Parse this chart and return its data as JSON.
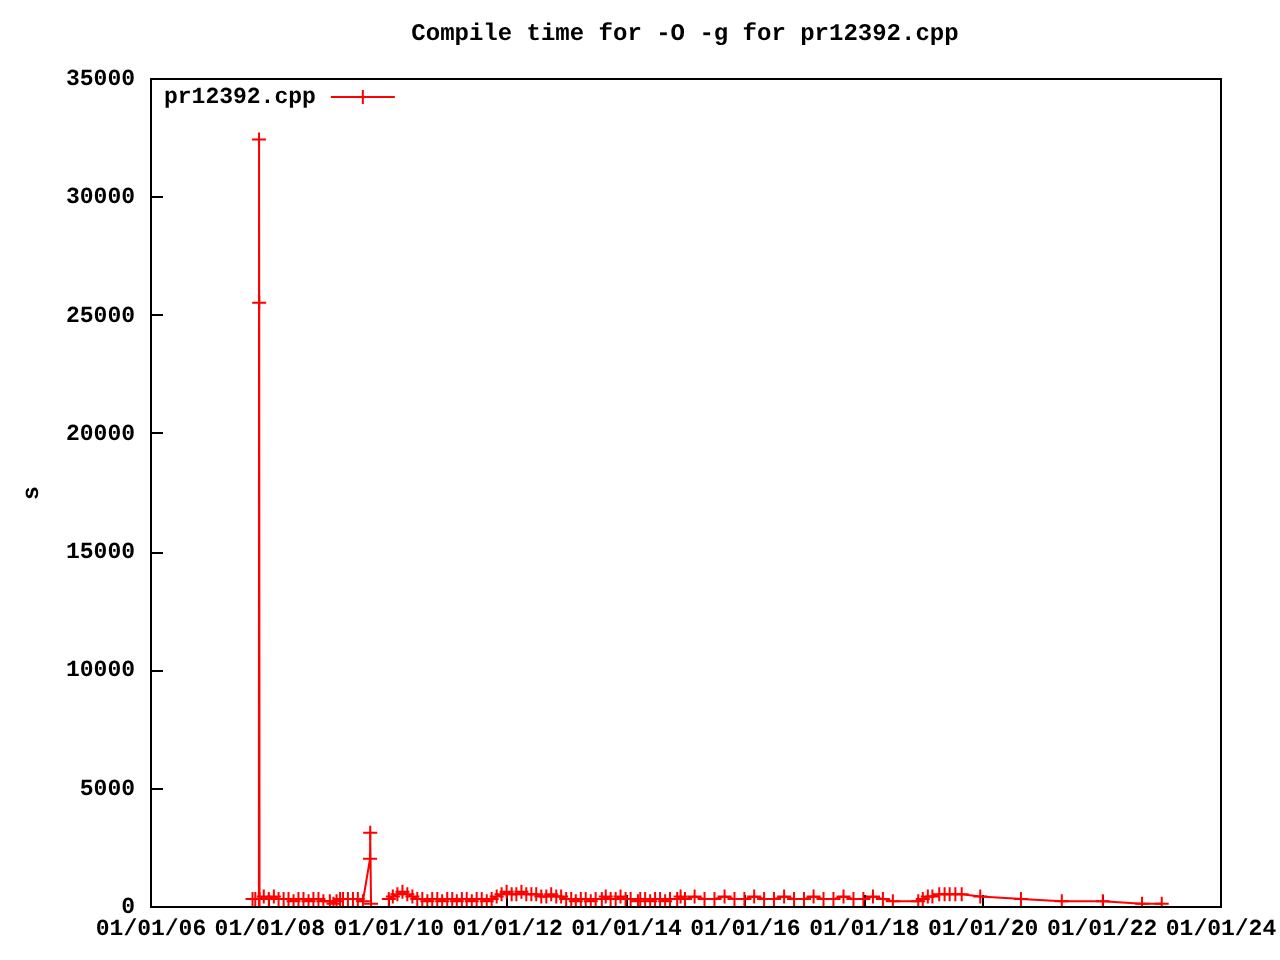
{
  "chart_data": {
    "type": "line",
    "title": "Compile time for -O -g for pr12392.cpp",
    "ylabel": "s",
    "x": [
      "2007-09-23",
      "2007-10-10",
      "2007-11-01",
      "2007-11-02",
      "2007-11-03",
      "2007-11-05",
      "2007-12-01",
      "2008-01-01",
      "2008-02-01",
      "2008-03-01",
      "2008-04-01",
      "2008-05-01",
      "2008-06-01",
      "2008-07-01",
      "2008-08-01",
      "2008-09-01",
      "2008-10-01",
      "2008-11-01",
      "2008-12-01",
      "2009-01-10",
      "2009-02-01",
      "2009-02-20",
      "2009-03-14",
      "2009-04-01",
      "2009-05-01",
      "2009-06-01",
      "2009-07-01",
      "2009-08-01",
      "2009-09-14",
      "2009-09-15",
      "2009-09-20",
      "2009-11-01",
      "2010-01-07",
      "2010-02-01",
      "2010-03-01",
      "2010-04-01",
      "2010-05-01",
      "2010-06-01",
      "2010-07-01",
      "2010-08-01",
      "2010-09-01",
      "2010-10-01",
      "2010-11-01",
      "2010-12-01",
      "2011-01-01",
      "2011-02-01",
      "2011-03-01",
      "2011-04-01",
      "2011-05-01",
      "2011-06-01",
      "2011-07-01",
      "2011-08-01",
      "2011-09-01",
      "2011-10-01",
      "2011-11-01",
      "2011-12-01",
      "2012-01-01",
      "2012-02-01",
      "2012-03-01",
      "2012-04-01",
      "2012-05-01",
      "2012-06-01",
      "2012-07-01",
      "2012-08-01",
      "2012-09-01",
      "2012-10-01",
      "2012-11-01",
      "2012-12-01",
      "2013-01-01",
      "2013-02-01",
      "2013-03-01",
      "2013-04-01",
      "2013-05-01",
      "2013-06-01",
      "2013-07-01",
      "2013-08-08",
      "2013-09-01",
      "2013-10-01",
      "2013-11-01",
      "2013-12-01",
      "2014-01-01",
      "2014-02-01",
      "2014-03-18",
      "2014-04-01",
      "2014-05-01",
      "2014-06-01",
      "2014-07-01",
      "2014-08-01",
      "2014-09-01",
      "2014-10-01",
      "2014-11-14",
      "2014-12-05",
      "2015-01-01",
      "2015-03-01",
      "2015-05-01",
      "2015-07-01",
      "2015-09-01",
      "2015-11-01",
      "2016-01-01",
      "2016-03-01",
      "2016-05-01",
      "2016-07-01",
      "2016-09-01",
      "2016-11-01",
      "2017-01-01",
      "2017-03-01",
      "2017-05-01",
      "2017-07-01",
      "2017-09-01",
      "2017-11-01",
      "2018-01-01",
      "2018-03-01",
      "2018-05-01",
      "2018-07-01",
      "2018-12-04",
      "2019-01-01",
      "2019-02-01",
      "2019-03-01",
      "2019-04-12",
      "2019-05-15",
      "2019-06-15",
      "2019-07-20",
      "2019-08-28",
      "2019-12-20",
      "2020-08-26",
      "2021-05-04",
      "2022-01-11",
      "2022-09-09",
      "2023-01-08"
    ],
    "series": [
      {
        "name": "pr12392.cpp",
        "color": "#ff0000",
        "values": [
          300,
          300,
          300,
          32400,
          25500,
          300,
          400,
          300,
          400,
          300,
          300,
          300,
          200,
          300,
          300,
          200,
          300,
          300,
          200,
          200,
          100,
          200,
          300,
          300,
          300,
          300,
          300,
          200,
          2000,
          3100,
          100,
          null,
          300,
          400,
          500,
          600,
          500,
          400,
          300,
          300,
          200,
          300,
          300,
          200,
          300,
          300,
          200,
          300,
          300,
          200,
          300,
          300,
          200,
          300,
          400,
          500,
          600,
          500,
          500,
          600,
          500,
          500,
          500,
          400,
          400,
          500,
          400,
          400,
          300,
          300,
          200,
          300,
          300,
          200,
          300,
          300,
          400,
          300,
          300,
          400,
          300,
          300,
          200,
          300,
          300,
          200,
          300,
          300,
          200,
          300,
          300,
          400,
          300,
          400,
          300,
          300,
          400,
          300,
          300,
          400,
          300,
          300,
          400,
          300,
          300,
          400,
          300,
          300,
          400,
          300,
          300,
          400,
          300,
          200,
          200,
          300,
          400,
          400,
          500,
          500,
          500,
          500,
          500,
          400,
          300,
          200,
          200,
          100,
          100
        ]
      }
    ],
    "xlim": [
      "2006-01-01",
      "2024-01-01"
    ],
    "xticks": [
      {
        "value": "2006-01-01",
        "label": "01/01/06"
      },
      {
        "value": "2008-01-01",
        "label": "01/01/08"
      },
      {
        "value": "2010-01-01",
        "label": "01/01/10"
      },
      {
        "value": "2012-01-01",
        "label": "01/01/12"
      },
      {
        "value": "2014-01-01",
        "label": "01/01/14"
      },
      {
        "value": "2016-01-01",
        "label": "01/01/16"
      },
      {
        "value": "2018-01-01",
        "label": "01/01/18"
      },
      {
        "value": "2020-01-01",
        "label": "01/01/20"
      },
      {
        "value": "2022-01-01",
        "label": "01/01/22"
      },
      {
        "value": "2024-01-01",
        "label": "01/01/24"
      }
    ],
    "ylim": [
      0,
      35000
    ],
    "yticks": [
      0,
      5000,
      10000,
      15000,
      20000,
      25000,
      30000,
      35000
    ],
    "grid": false,
    "legend": "top left",
    "marker": "cross",
    "line_style": "solid"
  }
}
